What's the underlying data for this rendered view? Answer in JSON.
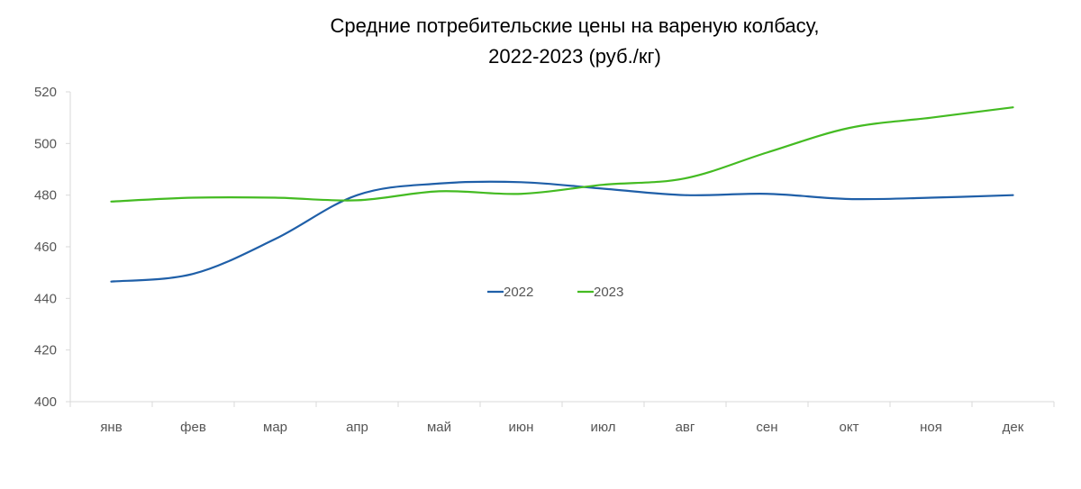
{
  "chart_data": {
    "type": "line",
    "title_lines": [
      "Средние потребительские цены на вареную колбасу,",
      "2022-2023 (руб./кг)"
    ],
    "categories": [
      "янв",
      "фев",
      "мар",
      "апр",
      "май",
      "июн",
      "июл",
      "авг",
      "сен",
      "окт",
      "ноя",
      "дек"
    ],
    "y_ticks": [
      "400",
      "420",
      "440",
      "460",
      "480",
      "500",
      "520"
    ],
    "ylim": [
      400,
      520
    ],
    "grid": false,
    "legend_position": "center",
    "series": [
      {
        "name": "2022",
        "color": "#1f5fa8",
        "values": [
          446.5,
          449.5,
          463.0,
          480.0,
          484.5,
          485.0,
          482.5,
          480.0,
          480.5,
          478.5,
          479.0,
          480.0
        ]
      },
      {
        "name": "2023",
        "color": "#44bb22",
        "values": [
          477.5,
          479.0,
          479.0,
          478.0,
          481.5,
          480.5,
          484.0,
          486.5,
          496.5,
          506.0,
          510.0,
          514.0
        ]
      }
    ]
  }
}
